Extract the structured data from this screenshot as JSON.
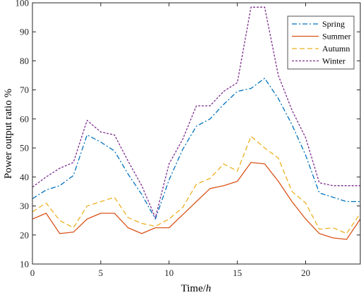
{
  "chart_data": {
    "type": "line",
    "xlabel": "Time/h",
    "xlabel_prefix": "Time/",
    "xlabel_unit": "h",
    "ylabel": "Power output ratio %",
    "xlim": [
      0,
      24
    ],
    "ylim": [
      10,
      100
    ],
    "xticks": [
      0,
      5,
      10,
      15,
      20
    ],
    "yticks": [
      10,
      20,
      30,
      40,
      50,
      60,
      70,
      80,
      90,
      100
    ],
    "grid": false,
    "legend_position": "top-right",
    "x": [
      0,
      1,
      2,
      3,
      4,
      5,
      6,
      7,
      8,
      9,
      10,
      11,
      12,
      13,
      14,
      15,
      16,
      17,
      18,
      19,
      20,
      21,
      22,
      23,
      24
    ],
    "series": [
      {
        "name": "Spring",
        "color": "#0072BD",
        "dash": "dash-dot",
        "values": [
          32.5,
          35.5,
          37,
          40.5,
          54.5,
          52,
          49,
          41,
          34,
          25.5,
          39,
          49.5,
          57.5,
          60,
          65,
          69.5,
          70.5,
          74,
          67,
          58,
          47.5,
          34.5,
          33,
          31.5,
          31.5
        ]
      },
      {
        "name": "Summer",
        "color": "#D95319",
        "dash": "solid",
        "values": [
          25.5,
          27.5,
          20.5,
          21,
          25.5,
          27.5,
          27.5,
          22.5,
          20.5,
          22.5,
          22.5,
          27,
          31.5,
          36,
          37,
          38.5,
          45,
          44.5,
          38.5,
          31.5,
          25.5,
          20.5,
          19,
          18.5,
          25.5
        ]
      },
      {
        "name": "Autumn",
        "color": "#EDB120",
        "dash": "dashed",
        "values": [
          28,
          31,
          25,
          22.5,
          30,
          31.5,
          33,
          26,
          24,
          23,
          25.5,
          29.5,
          37.5,
          39.5,
          44.5,
          42,
          54,
          50,
          46.5,
          35,
          31,
          22,
          22.5,
          20.5,
          27.5
        ]
      },
      {
        "name": "Winter",
        "color": "#7E2F8E",
        "dash": "dotted",
        "values": [
          36.5,
          40,
          43,
          45,
          59.5,
          55.5,
          54.5,
          45.5,
          37,
          26,
          44.5,
          53,
          64.5,
          64.5,
          69.5,
          72.5,
          98.5,
          98.5,
          75,
          63,
          53.5,
          38,
          37,
          37,
          37
        ]
      }
    ]
  }
}
